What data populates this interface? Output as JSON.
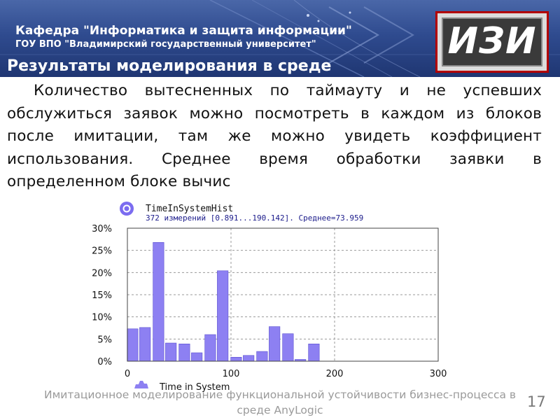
{
  "header": {
    "department": "Кафедра \"Информатика и защита информации\"",
    "university": "ГОУ ВПО \"Владимирский государственный университет\"",
    "logo": "ИЗИ"
  },
  "slide": {
    "title": "Результаты моделирования в среде",
    "paragraph": "Количество вытесненных по таймауту и не успевших обслужиться заявок можно посмотреть в каждом из блоков после имитации, там же можно увидеть коэффициент использования. Среднее время обработки заявки в определенном блоке вычис"
  },
  "chart_data": {
    "type": "bar",
    "title": "TimeInSystemHist",
    "subtitle": "372 измерений [0.891...190.142]. Среднее=73.959",
    "legend": "Time in System",
    "x": [
      5,
      17,
      30,
      42,
      55,
      67,
      80,
      92,
      105,
      117,
      130,
      142,
      155,
      167,
      180
    ],
    "values": [
      7.3,
      7.6,
      26.8,
      4.1,
      3.9,
      1.9,
      6.0,
      20.4,
      0.9,
      1.3,
      2.2,
      7.8,
      6.2,
      0.4,
      3.9
    ],
    "xlim": [
      0,
      300
    ],
    "ylim": [
      0,
      30
    ],
    "x_ticks": [
      "0",
      "100",
      "200",
      "300"
    ],
    "y_ticks": [
      "0%",
      "5%",
      "10%",
      "15%",
      "20%",
      "25%",
      "30%"
    ],
    "colors": {
      "bar": "#8d80f2",
      "bar_edge": "#5a4fd0",
      "grid": "#999999",
      "title": "#1a1a8a"
    }
  },
  "footer": {
    "text": "Имитационное моделирование функциональной устойчивости бизнес-процесса в среде AnyLogic",
    "page_number": "17"
  }
}
